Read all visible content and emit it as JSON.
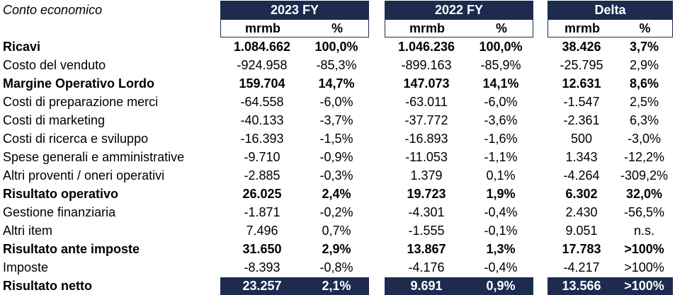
{
  "title": "Conto economico",
  "headers": {
    "y2023": "2023 FY",
    "y2022": "2022 FY",
    "delta": "Delta"
  },
  "subheaders": {
    "amount": "mrmb",
    "pct": "%"
  },
  "rows": [
    {
      "label": "Ricavi",
      "bold": true,
      "v": [
        "1.084.662",
        "100,0%",
        "1.046.236",
        "100,0%",
        "38.426",
        "3,7%"
      ]
    },
    {
      "label": "Costo del venduto",
      "bold": false,
      "v": [
        "-924.958",
        "-85,3%",
        "-899.163",
        "-85,9%",
        "-25.795",
        "2,9%"
      ]
    },
    {
      "label": "Margine Operativo Lordo",
      "bold": true,
      "v": [
        "159.704",
        "14,7%",
        "147.073",
        "14,1%",
        "12.631",
        "8,6%"
      ]
    },
    {
      "label": "Costi di preparazione merci",
      "bold": false,
      "v": [
        "-64.558",
        "-6,0%",
        "-63.011",
        "-6,0%",
        "-1.547",
        "2,5%"
      ]
    },
    {
      "label": "Costi di marketing",
      "bold": false,
      "v": [
        "-40.133",
        "-3,7%",
        "-37.772",
        "-3,6%",
        "-2.361",
        "6,3%"
      ]
    },
    {
      "label": "Costi di ricerca e sviluppo",
      "bold": false,
      "v": [
        "-16.393",
        "-1,5%",
        "-16.893",
        "-1,6%",
        "500",
        "-3,0%"
      ]
    },
    {
      "label": "Spese generali e amministrative",
      "bold": false,
      "v": [
        "-9.710",
        "-0,9%",
        "-11.053",
        "-1,1%",
        "1.343",
        "-12,2%"
      ]
    },
    {
      "label": "Altri proventi / oneri operativi",
      "bold": false,
      "v": [
        "-2.885",
        "-0,3%",
        "1.379",
        "0,1%",
        "-4.264",
        "-309,2%"
      ]
    },
    {
      "label": "Risultato operativo",
      "bold": true,
      "v": [
        "26.025",
        "2,4%",
        "19.723",
        "1,9%",
        "6.302",
        "32,0%"
      ]
    },
    {
      "label": "Gestione finanziaria",
      "bold": false,
      "v": [
        "-1.871",
        "-0,2%",
        "-4.301",
        "-0,4%",
        "2.430",
        "-56,5%"
      ]
    },
    {
      "label": "Altri item",
      "bold": false,
      "v": [
        "7.496",
        "0,7%",
        "-1.555",
        "-0,1%",
        "9.051",
        "n.s."
      ]
    },
    {
      "label": "Risultato ante imposte",
      "bold": true,
      "v": [
        "31.650",
        "2,9%",
        "13.867",
        "1,3%",
        "17.783",
        ">100%"
      ]
    },
    {
      "label": "Imposte",
      "bold": false,
      "v": [
        "-8.393",
        "-0,8%",
        "-4.176",
        "-0,4%",
        "-4.217",
        ">100%"
      ]
    },
    {
      "label": "Risultato netto",
      "bold": true,
      "v": [
        "23.257",
        "2,1%",
        "9.691",
        "0,9%",
        "13.566",
        ">100%"
      ]
    }
  ],
  "colors": {
    "navy": "#1c2b4e",
    "white": "#ffffff"
  }
}
